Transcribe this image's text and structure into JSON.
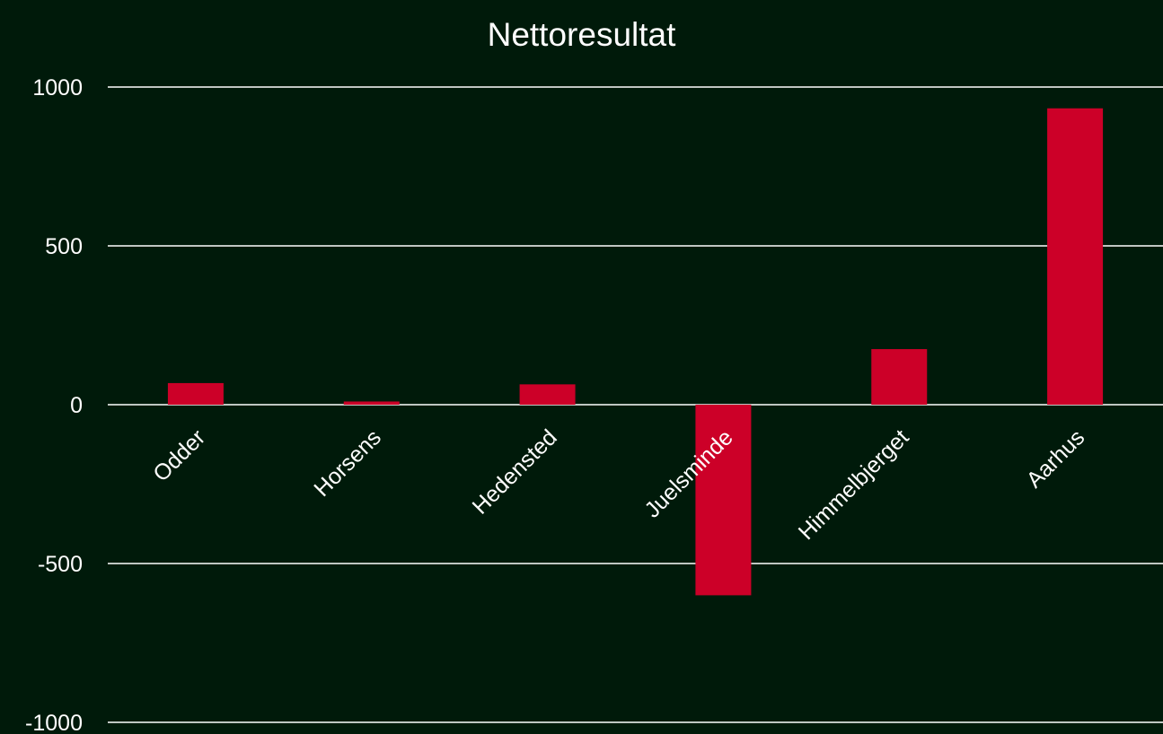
{
  "colors": {
    "background": "#001a0a",
    "bar": "#cc0028",
    "gridline": "#ffffff",
    "text": "#ffffff"
  },
  "chart_data": {
    "type": "bar",
    "title": "Nettoresultat",
    "xlabel": "",
    "ylabel": "",
    "categories": [
      "Odder",
      "Horsens",
      "Hedensted",
      "Juelsminde",
      "Himmelbjerget",
      "Aarhus"
    ],
    "values": [
      68,
      10,
      64,
      -600,
      175,
      933
    ],
    "ylim": [
      -1000,
      1000
    ],
    "yticks": [
      1000,
      500,
      0,
      -500,
      -1000
    ],
    "ytick_labels": [
      "1000",
      "500",
      "0",
      "-500",
      "-1000"
    ],
    "grid": true,
    "legend": "none"
  }
}
